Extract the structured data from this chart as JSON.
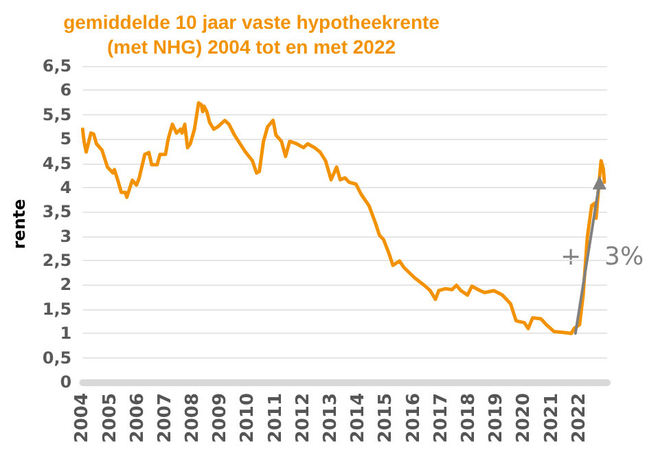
{
  "chart_data": {
    "type": "line",
    "title": "gemiddelde 10 jaar vaste hypotheekrente\n(met NHG) 2004 tot en met 2022",
    "ylabel": "rente",
    "xlim": [
      2004,
      2023
    ],
    "xticks": [
      2004,
      2005,
      2006,
      2007,
      2008,
      2009,
      2010,
      2011,
      2012,
      2013,
      2014,
      2015,
      2016,
      2017,
      2018,
      2019,
      2020,
      2021,
      2022
    ],
    "ylim": [
      0,
      6.5
    ],
    "yticks": [
      0,
      {
        "value": 0.5,
        "label": "0,5"
      },
      1,
      {
        "value": 1.5,
        "label": "1,5"
      },
      2,
      {
        "value": 2.5,
        "label": "2,5"
      },
      3,
      {
        "value": 3.5,
        "label": "3,5"
      },
      4,
      {
        "value": 4.5,
        "label": "4,5"
      },
      5,
      {
        "value": 5.5,
        "label": "5,5"
      },
      6,
      {
        "value": 6.5,
        "label": "6,5"
      }
    ],
    "grid": "y",
    "line_style": "solid",
    "annotations": [
      "+",
      "3%"
    ],
    "series": [
      {
        "color": "#f39200",
        "marker": "none",
        "x": [
          2004.0,
          2004.05,
          2004.13,
          2004.3,
          2004.4,
          2004.5,
          2004.7,
          2004.9,
          2005.1,
          2005.15,
          2005.3,
          2005.4,
          2005.55,
          2005.6,
          2005.8,
          2005.95,
          2006.05,
          2006.25,
          2006.4,
          2006.5,
          2006.7,
          2006.8,
          2007.0,
          2007.1,
          2007.25,
          2007.4,
          2007.55,
          2007.6,
          2007.7,
          2007.8,
          2007.9,
          2008.05,
          2008.2,
          2008.3,
          2008.35,
          2008.4,
          2008.5,
          2008.6,
          2008.75,
          2008.9,
          2009.15,
          2009.3,
          2009.5,
          2009.75,
          2009.9,
          2010.15,
          2010.3,
          2010.4,
          2010.55,
          2010.7,
          2010.9,
          2011.0,
          2011.2,
          2011.35,
          2011.5,
          2011.75,
          2012.0,
          2012.15,
          2012.4,
          2012.6,
          2012.8,
          2013.0,
          2013.2,
          2013.33,
          2013.5,
          2013.65,
          2013.9,
          2014.1,
          2014.37,
          2014.6,
          2014.75,
          2014.9,
          2015.08,
          2015.24,
          2015.48,
          2015.63,
          2016.03,
          2016.35,
          2016.59,
          2016.78,
          2016.9,
          2017.14,
          2017.38,
          2017.54,
          2017.7,
          2017.94,
          2018.1,
          2018.4,
          2018.56,
          2018.9,
          2019.2,
          2019.5,
          2019.7,
          2020.0,
          2020.14,
          2020.3,
          2020.6,
          2020.78,
          2021.07,
          2021.4,
          2021.7,
          2021.8,
          2022.0,
          2022.13,
          2022.28,
          2022.44,
          2022.56,
          2022.6,
          2022.7,
          2022.78,
          2022.86,
          2022.9
        ],
        "values": [
          5.2,
          4.95,
          4.73,
          5.12,
          5.1,
          4.9,
          4.77,
          4.42,
          4.3,
          4.37,
          4.1,
          3.9,
          3.9,
          3.8,
          4.15,
          4.05,
          4.2,
          4.68,
          4.72,
          4.47,
          4.47,
          4.68,
          4.68,
          5.0,
          5.3,
          5.12,
          5.2,
          5.12,
          5.3,
          4.82,
          4.9,
          5.2,
          5.74,
          5.7,
          5.56,
          5.67,
          5.56,
          5.34,
          5.2,
          5.25,
          5.38,
          5.3,
          5.08,
          4.86,
          4.73,
          4.55,
          4.3,
          4.33,
          4.95,
          5.25,
          5.38,
          5.08,
          4.95,
          4.64,
          4.95,
          4.9,
          4.82,
          4.9,
          4.82,
          4.73,
          4.55,
          4.16,
          4.42,
          4.16,
          4.2,
          4.11,
          4.07,
          3.85,
          3.63,
          3.28,
          3.02,
          2.93,
          2.67,
          2.4,
          2.49,
          2.36,
          2.14,
          2.0,
          1.88,
          1.7,
          1.88,
          1.92,
          1.9,
          1.99,
          1.88,
          1.79,
          1.97,
          1.88,
          1.84,
          1.88,
          1.79,
          1.61,
          1.26,
          1.22,
          1.1,
          1.32,
          1.3,
          1.19,
          1.04,
          1.02,
          1.0,
          1.1,
          1.18,
          1.79,
          2.97,
          3.63,
          3.68,
          3.37,
          4.07,
          4.55,
          4.38,
          4.11
        ]
      },
      {
        "color": "#808080",
        "marker": "triangle",
        "x": [
          2021.85,
          2022.72
        ],
        "values": [
          1.0,
          4.1
        ]
      }
    ]
  }
}
